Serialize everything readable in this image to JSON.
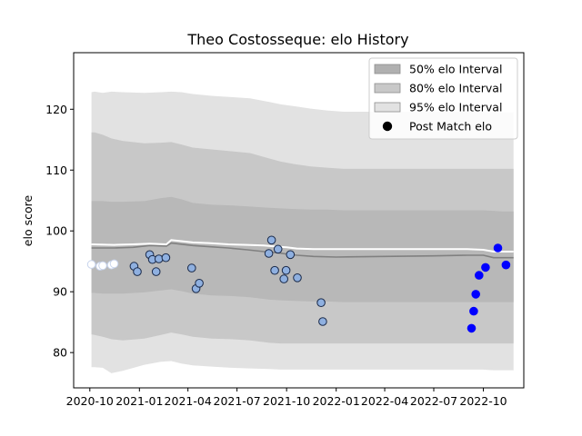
{
  "chart_data": {
    "type": "line",
    "title": "Theo Costosseque: elo History",
    "xlabel": "",
    "ylabel": "elo score",
    "xlim": [
      "2020-09-01",
      "2022-12-15"
    ],
    "ylim": [
      74.2,
      129.3
    ],
    "x_ticks": [
      "2020-10",
      "2021-01",
      "2021-04",
      "2021-07",
      "2021-10",
      "2022-01",
      "2022-04",
      "2022-07",
      "2022-10"
    ],
    "y_ticks": [
      80,
      90,
      100,
      110,
      120
    ],
    "grid": false,
    "legend": {
      "position": "top-right",
      "entries": [
        {
          "label": "50% elo Interval",
          "kind": "patch",
          "color": "#b0b0b0"
        },
        {
          "label": "80% elo Interval",
          "kind": "patch",
          "color": "#c8c8c8"
        },
        {
          "label": "95% elo Interval",
          "kind": "patch",
          "color": "#e2e2e2"
        },
        {
          "label": "Post Match elo",
          "kind": "marker",
          "color": "#000000"
        }
      ]
    },
    "colors": {
      "band95": "#e2e2e2",
      "band80": "#c8c8c8",
      "band50": "#b8b8b8",
      "mean_line": "#808080",
      "median_line": "#ffffff",
      "point_old": "#8fb0e0",
      "point_recent": "#0000ff",
      "point_early": "#ffffff"
    },
    "bands": {
      "dates": [
        "2020-10-04",
        "2020-10-10",
        "2020-10-25",
        "2020-11-10",
        "2020-12-01",
        "2021-01-10",
        "2021-02-10",
        "2021-03-01",
        "2021-03-20",
        "2021-04-10",
        "2021-05-15",
        "2021-06-20",
        "2021-07-25",
        "2021-08-30",
        "2021-09-20",
        "2021-10-15",
        "2021-11-15",
        "2021-12-15",
        "2022-01-15",
        "2022-03-01",
        "2022-05-01",
        "2022-07-01",
        "2022-09-01",
        "2022-09-30",
        "2022-10-20",
        "2022-11-05",
        "2022-11-26"
      ],
      "p95_upper": [
        122.8,
        122.9,
        122.7,
        122.9,
        122.8,
        122.7,
        122.8,
        122.9,
        122.8,
        122.5,
        122.2,
        122.0,
        121.8,
        121.2,
        120.8,
        120.5,
        120.1,
        119.8,
        119.6,
        119.6,
        119.6,
        119.6,
        119.6,
        119.6,
        119.5,
        119.5,
        119.5
      ],
      "p80_upper": [
        116.2,
        116.2,
        115.8,
        115.2,
        114.8,
        114.4,
        114.5,
        114.6,
        114.2,
        113.7,
        113.4,
        113.1,
        112.8,
        111.9,
        111.4,
        111.0,
        110.6,
        110.4,
        110.2,
        110.2,
        110.2,
        110.2,
        110.2,
        110.2,
        110.2,
        110.2,
        110.2
      ],
      "p50_upper": [
        104.9,
        104.9,
        104.9,
        104.8,
        104.8,
        104.9,
        105.4,
        105.6,
        105.2,
        104.6,
        104.3,
        104.2,
        104.0,
        103.8,
        103.7,
        103.6,
        103.5,
        103.5,
        103.4,
        103.4,
        103.4,
        103.4,
        103.4,
        103.4,
        103.3,
        103.2,
        103.2
      ],
      "p50_lower": [
        89.8,
        89.8,
        89.7,
        89.7,
        89.7,
        89.9,
        90.2,
        90.4,
        90.1,
        89.7,
        89.4,
        89.3,
        89.1,
        88.7,
        88.6,
        88.5,
        88.4,
        88.4,
        88.3,
        88.3,
        88.3,
        88.3,
        88.3,
        88.3,
        88.3,
        88.3,
        88.3
      ],
      "p80_lower": [
        83.0,
        82.9,
        82.6,
        82.2,
        82.0,
        82.3,
        82.9,
        83.3,
        83.0,
        82.6,
        82.3,
        82.2,
        82.0,
        81.6,
        81.5,
        81.5,
        81.5,
        81.5,
        81.5,
        81.5,
        81.5,
        81.5,
        81.5,
        81.5,
        81.5,
        81.5,
        81.5
      ],
      "p95_lower": [
        77.6,
        77.6,
        77.5,
        76.6,
        77.0,
        78.0,
        78.5,
        78.6,
        78.2,
        77.9,
        77.7,
        77.5,
        77.4,
        77.3,
        77.2,
        77.2,
        77.2,
        77.2,
        77.2,
        77.2,
        77.2,
        77.2,
        77.2,
        77.2,
        77.1,
        77.1,
        77.1
      ]
    },
    "mean_line": {
      "dates": [
        "2020-10-04",
        "2020-11-15",
        "2020-12-20",
        "2021-01-20",
        "2021-02-20",
        "2021-03-01",
        "2021-04-10",
        "2021-05-10",
        "2021-06-15",
        "2021-07-20",
        "2021-08-20",
        "2021-09-15",
        "2021-10-01",
        "2021-10-20",
        "2021-11-20",
        "2022-01-01",
        "2022-04-01",
        "2022-07-01",
        "2022-09-01",
        "2022-10-01",
        "2022-10-20",
        "2022-11-26"
      ],
      "values": [
        97.2,
        97.2,
        97.3,
        97.6,
        97.5,
        98.0,
        97.6,
        97.4,
        97.2,
        96.9,
        96.6,
        96.4,
        96.2,
        96.0,
        95.8,
        95.7,
        95.8,
        95.9,
        96.0,
        96.0,
        95.6,
        95.6
      ]
    },
    "median_line": {
      "dates": [
        "2020-10-04",
        "2020-11-15",
        "2020-12-20",
        "2021-01-20",
        "2021-02-20",
        "2021-03-01",
        "2021-04-10",
        "2021-05-10",
        "2021-06-15",
        "2021-07-20",
        "2021-08-20",
        "2021-09-15",
        "2021-10-01",
        "2021-10-20",
        "2021-11-20",
        "2022-01-01",
        "2022-04-01",
        "2022-07-01",
        "2022-09-01",
        "2022-10-01",
        "2022-10-20",
        "2022-11-26"
      ],
      "values": [
        97.8,
        97.7,
        97.8,
        97.9,
        97.8,
        98.5,
        98.1,
        98.0,
        97.8,
        97.7,
        97.6,
        97.4,
        97.3,
        97.1,
        97.0,
        97.0,
        97.0,
        97.0,
        97.0,
        96.9,
        96.6,
        96.6
      ]
    },
    "points": [
      {
        "date": "2020-10-04",
        "elo": 94.5,
        "group": "early"
      },
      {
        "date": "2020-10-20",
        "elo": 94.2,
        "group": "early"
      },
      {
        "date": "2020-10-25",
        "elo": 94.3,
        "group": "early"
      },
      {
        "date": "2020-11-10",
        "elo": 94.4,
        "group": "early"
      },
      {
        "date": "2020-11-15",
        "elo": 94.6,
        "group": "early"
      },
      {
        "date": "2020-12-22",
        "elo": 94.2,
        "group": "old"
      },
      {
        "date": "2020-12-28",
        "elo": 93.3,
        "group": "old"
      },
      {
        "date": "2021-01-20",
        "elo": 96.1,
        "group": "old"
      },
      {
        "date": "2021-01-25",
        "elo": 95.3,
        "group": "old"
      },
      {
        "date": "2021-02-01",
        "elo": 93.3,
        "group": "old"
      },
      {
        "date": "2021-02-06",
        "elo": 95.4,
        "group": "old"
      },
      {
        "date": "2021-02-19",
        "elo": 95.6,
        "group": "old"
      },
      {
        "date": "2021-04-08",
        "elo": 93.9,
        "group": "old"
      },
      {
        "date": "2021-04-16",
        "elo": 90.5,
        "group": "old"
      },
      {
        "date": "2021-04-22",
        "elo": 91.4,
        "group": "old"
      },
      {
        "date": "2021-08-29",
        "elo": 96.3,
        "group": "old"
      },
      {
        "date": "2021-09-03",
        "elo": 98.5,
        "group": "old"
      },
      {
        "date": "2021-09-09",
        "elo": 93.5,
        "group": "old"
      },
      {
        "date": "2021-09-15",
        "elo": 97.0,
        "group": "old"
      },
      {
        "date": "2021-09-26",
        "elo": 92.1,
        "group": "old"
      },
      {
        "date": "2021-09-30",
        "elo": 93.5,
        "group": "old"
      },
      {
        "date": "2021-10-08",
        "elo": 96.1,
        "group": "old"
      },
      {
        "date": "2021-10-21",
        "elo": 92.3,
        "group": "old"
      },
      {
        "date": "2021-12-04",
        "elo": 88.2,
        "group": "old"
      },
      {
        "date": "2021-12-07",
        "elo": 85.1,
        "group": "old"
      },
      {
        "date": "2022-09-09",
        "elo": 84.0,
        "group": "recent"
      },
      {
        "date": "2022-09-13",
        "elo": 86.8,
        "group": "recent"
      },
      {
        "date": "2022-09-17",
        "elo": 89.6,
        "group": "recent"
      },
      {
        "date": "2022-09-23",
        "elo": 92.7,
        "group": "recent"
      },
      {
        "date": "2022-10-05",
        "elo": 94.0,
        "group": "recent"
      },
      {
        "date": "2022-10-28",
        "elo": 97.2,
        "group": "recent"
      },
      {
        "date": "2022-11-12",
        "elo": 94.4,
        "group": "recent"
      }
    ]
  }
}
